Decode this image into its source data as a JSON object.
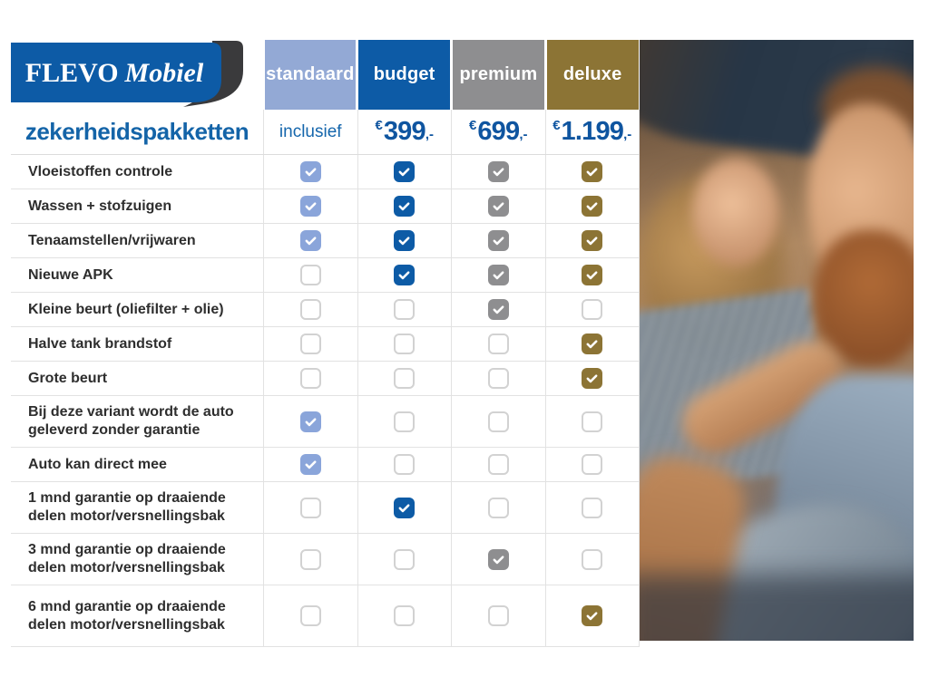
{
  "colors": {
    "title_blue": "#1464a8",
    "price_blue": "#0f55a0",
    "logo_blue": "#0d5ba6",
    "logo_dark": "#3a3a3c",
    "standaard": "#93a9d5",
    "standaard_check": "#8aa5da",
    "budget": "#0d5ba6",
    "premium": "#8e8e90",
    "deluxe": "#8c7435"
  },
  "brand": {
    "logo_primary": "FLEVO",
    "logo_secondary": "Mobiel"
  },
  "title": "zekerheidspakketten",
  "packages": [
    {
      "label": "standaard",
      "price": {
        "text": "inclusief"
      },
      "header_color": "#93a9d5",
      "check_color": "#8aa5da"
    },
    {
      "label": "budget",
      "price": {
        "currency": "€",
        "amount": "399",
        "suffix": ",-"
      },
      "header_color": "#0d5ba6",
      "check_color": "#0d5ba6"
    },
    {
      "label": "premium",
      "price": {
        "currency": "€",
        "amount": "699",
        "suffix": ",-"
      },
      "header_color": "#8e8e90",
      "check_color": "#8e8e90"
    },
    {
      "label": "deluxe",
      "price": {
        "currency": "€",
        "amount": "1.199",
        "suffix": ",-"
      },
      "header_color": "#8c7435",
      "check_color": "#8c7435"
    }
  ],
  "chart_data": {
    "type": "table",
    "title": "zekerheidspakketten",
    "columns": [
      "standaard",
      "budget",
      "premium",
      "deluxe"
    ],
    "prices": [
      "inclusief",
      "€399,-",
      "€699,-",
      "€1.199,-"
    ],
    "rows": [
      {
        "feature": "Vloeistoffen controle",
        "included": [
          true,
          true,
          true,
          true
        ]
      },
      {
        "feature": "Wassen + stofzuigen",
        "included": [
          true,
          true,
          true,
          true
        ]
      },
      {
        "feature": "Tenaamstellen/vrijwaren",
        "included": [
          true,
          true,
          true,
          true
        ]
      },
      {
        "feature": "Nieuwe APK",
        "included": [
          false,
          true,
          true,
          true
        ]
      },
      {
        "feature": "Kleine beurt (oliefilter + olie)",
        "included": [
          false,
          false,
          true,
          false
        ]
      },
      {
        "feature": "Halve tank brandstof",
        "included": [
          false,
          false,
          false,
          true
        ]
      },
      {
        "feature": "Grote beurt",
        "included": [
          false,
          false,
          false,
          true
        ]
      },
      {
        "feature": "Bij deze variant wordt de auto geleverd zonder garantie",
        "included": [
          true,
          false,
          false,
          false
        ]
      },
      {
        "feature": "Auto kan direct mee",
        "included": [
          true,
          false,
          false,
          false
        ]
      },
      {
        "feature": "1 mnd garantie op draaiende delen motor/versnellingsbak",
        "included": [
          false,
          true,
          false,
          false
        ]
      },
      {
        "feature": "3 mnd garantie op draaiende delen motor/versnellingsbak",
        "included": [
          false,
          false,
          true,
          false
        ]
      },
      {
        "feature": "6 mnd garantie op draaiende delen motor/versnellingsbak",
        "included": [
          false,
          false,
          false,
          true
        ]
      }
    ]
  },
  "photo": {
    "description_icon": "couple-in-car-photo"
  }
}
